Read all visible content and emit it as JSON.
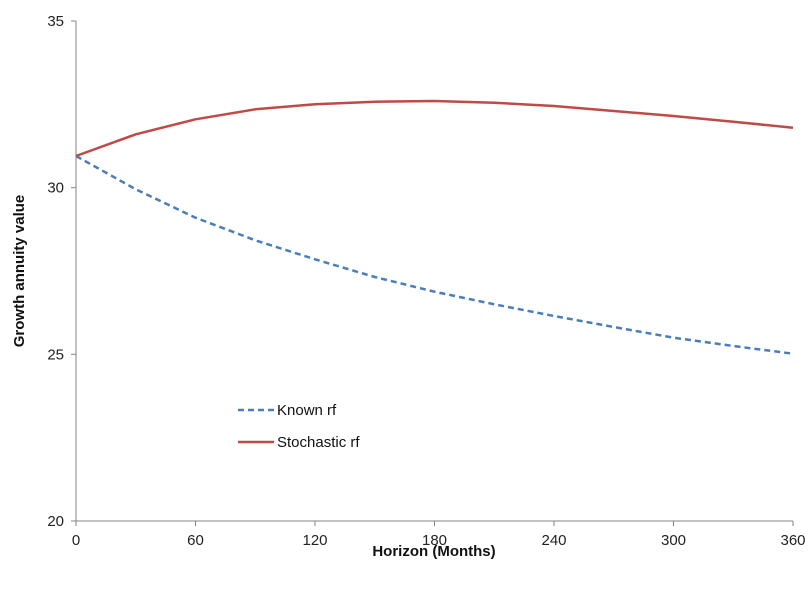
{
  "chart_data": {
    "type": "line",
    "xlabel": "Horizon (Months)",
    "ylabel": "Growth annuity value",
    "xlim": [
      0,
      360
    ],
    "ylim": [
      20,
      35
    ],
    "x_ticks": [
      0,
      60,
      120,
      180,
      240,
      300,
      360
    ],
    "y_ticks": [
      20,
      25,
      30,
      35
    ],
    "grid": false,
    "legend_position": "center-left",
    "series": [
      {
        "name": "Known rf",
        "color": "#4a7ebb",
        "style": "dashed",
        "x": [
          0,
          30,
          60,
          90,
          120,
          150,
          180,
          210,
          240,
          270,
          300,
          330,
          360
        ],
        "y": [
          30.95,
          29.95,
          29.1,
          28.42,
          27.85,
          27.32,
          26.88,
          26.5,
          26.15,
          25.82,
          25.5,
          25.25,
          25.02
        ]
      },
      {
        "name": "Stochastic rf",
        "color": "#be4b48",
        "style": "solid",
        "x": [
          0,
          30,
          60,
          90,
          120,
          150,
          180,
          210,
          240,
          270,
          300,
          330,
          360
        ],
        "y": [
          30.95,
          31.6,
          32.05,
          32.35,
          32.5,
          32.58,
          32.6,
          32.55,
          32.45,
          32.3,
          32.15,
          31.98,
          31.8
        ]
      }
    ]
  }
}
